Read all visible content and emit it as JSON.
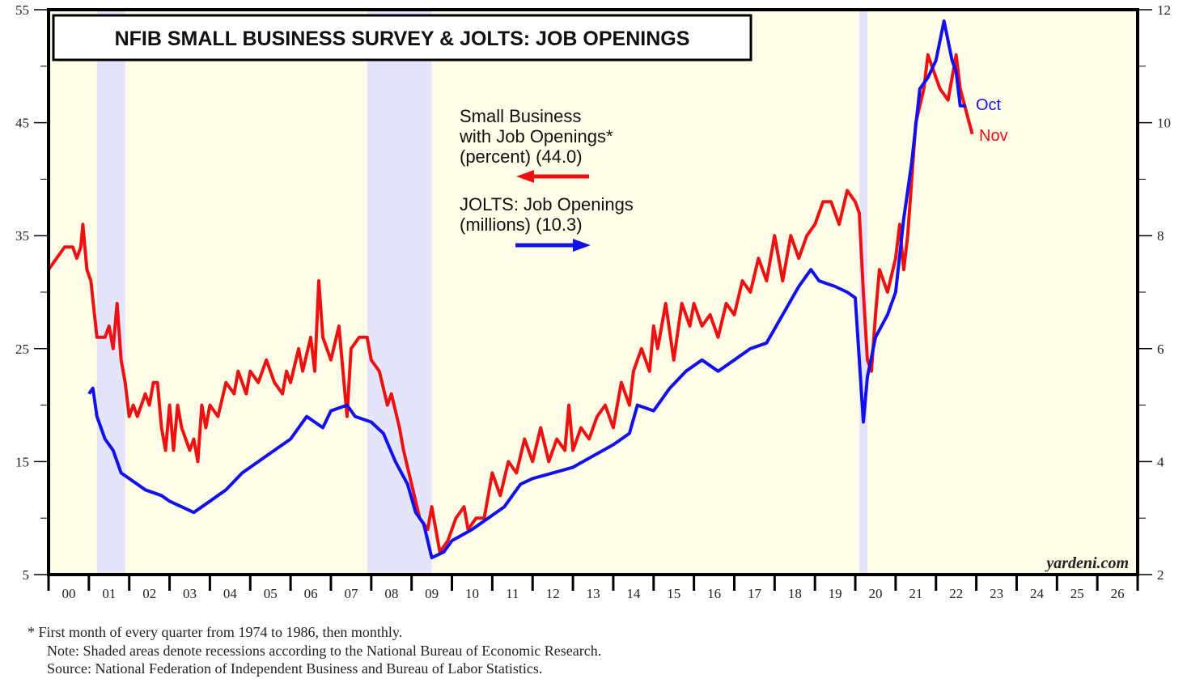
{
  "chart_data": {
    "type": "line",
    "title": "NFIB SMALL BUSINESS SURVEY & JOLTS: JOB OPENINGS",
    "xlim": [
      2000,
      2027
    ],
    "x_tick_labels": [
      "00",
      "01",
      "02",
      "03",
      "04",
      "05",
      "06",
      "07",
      "08",
      "09",
      "10",
      "11",
      "12",
      "13",
      "14",
      "15",
      "16",
      "17",
      "18",
      "19",
      "20",
      "21",
      "22",
      "23",
      "24",
      "25",
      "26"
    ],
    "y_left": {
      "lim": [
        5,
        55
      ],
      "ticks": [
        "5",
        "15",
        "25",
        "35",
        "45",
        "55"
      ],
      "label": "percent"
    },
    "y_right": {
      "lim": [
        2,
        12
      ],
      "ticks": [
        "2",
        "4",
        "6",
        "8",
        "10",
        "12"
      ],
      "label": "millions"
    },
    "grid": false,
    "recessions": [
      [
        2001.2,
        2001.9
      ],
      [
        2007.9,
        2009.5
      ],
      [
        2020.1,
        2020.3
      ]
    ],
    "colors": {
      "plot_bg": "#fffde8",
      "recession": "#e4e4fb",
      "red": "#ee1111",
      "blue": "#1111ee"
    },
    "series": [
      {
        "name": "Small Business with Job Openings* (percent) (44.0)",
        "axis": "left",
        "color": "#ee1111",
        "end_label": "Nov",
        "x": [
          2000.0,
          2000.2,
          2000.4,
          2000.6,
          2000.7,
          2000.8,
          2000.85,
          2000.95,
          2001.05,
          2001.2,
          2001.4,
          2001.5,
          2001.6,
          2001.7,
          2001.8,
          2001.9,
          2002.0,
          2002.1,
          2002.2,
          2002.4,
          2002.5,
          2002.6,
          2002.7,
          2002.8,
          2002.9,
          2003.0,
          2003.1,
          2003.2,
          2003.3,
          2003.5,
          2003.6,
          2003.7,
          2003.8,
          2003.9,
          2004.0,
          2004.2,
          2004.4,
          2004.6,
          2004.7,
          2004.9,
          2005.0,
          2005.2,
          2005.4,
          2005.6,
          2005.8,
          2005.9,
          2006.0,
          2006.2,
          2006.3,
          2006.5,
          2006.6,
          2006.7,
          2006.8,
          2007.0,
          2007.2,
          2007.4,
          2007.5,
          2007.7,
          2007.9,
          2008.0,
          2008.2,
          2008.4,
          2008.5,
          2008.7,
          2008.8,
          2009.0,
          2009.2,
          2009.4,
          2009.5,
          2009.7,
          2009.9,
          2010.1,
          2010.3,
          2010.4,
          2010.6,
          2010.8,
          2011.0,
          2011.2,
          2011.4,
          2011.6,
          2011.8,
          2012.0,
          2012.2,
          2012.4,
          2012.6,
          2012.8,
          2012.9,
          2013.0,
          2013.2,
          2013.4,
          2013.6,
          2013.8,
          2014.0,
          2014.2,
          2014.4,
          2014.5,
          2014.7,
          2014.9,
          2015.0,
          2015.1,
          2015.3,
          2015.5,
          2015.7,
          2015.9,
          2016.0,
          2016.2,
          2016.4,
          2016.6,
          2016.8,
          2017.0,
          2017.2,
          2017.4,
          2017.6,
          2017.8,
          2018.0,
          2018.2,
          2018.4,
          2018.6,
          2018.8,
          2019.0,
          2019.2,
          2019.4,
          2019.6,
          2019.8,
          2020.0,
          2020.1,
          2020.2,
          2020.3,
          2020.4,
          2020.5,
          2020.6,
          2020.8,
          2021.0,
          2021.1,
          2021.2,
          2021.3,
          2021.4,
          2021.5,
          2021.7,
          2021.8,
          2022.0,
          2022.1,
          2022.3,
          2022.5,
          2022.6,
          2022.75,
          2022.9
        ],
        "y": [
          32,
          33,
          34,
          34,
          33,
          34,
          36,
          32,
          31,
          26,
          26,
          27,
          25,
          29,
          24,
          22,
          19,
          20,
          19,
          21,
          20,
          22,
          22,
          18,
          16,
          20,
          16,
          20,
          18,
          16,
          17,
          15,
          20,
          18,
          20,
          19,
          22,
          21,
          23,
          21,
          23,
          22,
          24,
          22,
          21,
          23,
          22,
          25,
          23,
          26,
          23,
          31,
          26,
          24,
          27,
          19,
          25,
          26,
          26,
          24,
          23,
          20,
          21,
          18,
          16,
          13,
          10,
          9,
          11,
          7,
          8,
          10,
          11,
          9,
          10,
          10,
          14,
          12,
          15,
          14,
          17,
          15,
          18,
          15,
          17,
          16,
          20,
          16,
          18,
          17,
          19,
          20,
          18,
          22,
          20,
          23,
          25,
          23,
          27,
          25,
          29,
          24,
          29,
          27,
          29,
          27,
          28,
          26,
          29,
          28,
          31,
          30,
          33,
          31,
          35,
          31,
          35,
          33,
          35,
          36,
          38,
          38,
          36,
          39,
          38,
          37,
          30,
          24,
          23,
          28,
          32,
          30,
          33,
          36,
          32,
          35,
          40,
          45,
          48,
          51,
          49,
          48,
          47,
          51,
          48,
          46,
          44
        ]
      },
      {
        "name": "JOLTS: Job Openings (millions) (10.3)",
        "axis": "right",
        "color": "#1111ee",
        "end_label": "Oct",
        "x": [
          2001.0,
          2001.1,
          2001.2,
          2001.4,
          2001.6,
          2001.8,
          2002.0,
          2002.4,
          2002.8,
          2003.0,
          2003.3,
          2003.6,
          2004.0,
          2004.4,
          2004.8,
          2005.2,
          2005.6,
          2006.0,
          2006.4,
          2006.8,
          2007.0,
          2007.4,
          2007.6,
          2008.0,
          2008.3,
          2008.6,
          2008.9,
          2009.1,
          2009.3,
          2009.5,
          2009.8,
          2010.0,
          2010.5,
          2010.9,
          2011.3,
          2011.7,
          2012.0,
          2012.5,
          2013.0,
          2013.5,
          2014.0,
          2014.4,
          2014.6,
          2015.0,
          2015.4,
          2015.8,
          2016.2,
          2016.6,
          2017.0,
          2017.4,
          2017.8,
          2018.2,
          2018.6,
          2018.9,
          2019.1,
          2019.5,
          2019.8,
          2020.0,
          2020.2,
          2020.3,
          2020.5,
          2020.8,
          2021.0,
          2021.2,
          2021.4,
          2021.6,
          2021.8,
          2022.0,
          2022.2,
          2022.4,
          2022.5,
          2022.6,
          2022.75
        ],
        "y": [
          5.2,
          5.3,
          4.8,
          4.4,
          4.2,
          3.8,
          3.7,
          3.5,
          3.4,
          3.3,
          3.2,
          3.1,
          3.3,
          3.5,
          3.8,
          4.0,
          4.2,
          4.4,
          4.8,
          4.6,
          4.9,
          5.0,
          4.8,
          4.7,
          4.5,
          4.0,
          3.6,
          3.1,
          2.9,
          2.3,
          2.4,
          2.6,
          2.8,
          3.0,
          3.2,
          3.6,
          3.7,
          3.8,
          3.9,
          4.1,
          4.3,
          4.5,
          5.0,
          4.9,
          5.3,
          5.6,
          5.8,
          5.6,
          5.8,
          6.0,
          6.1,
          6.6,
          7.1,
          7.4,
          7.2,
          7.1,
          7.0,
          6.9,
          4.7,
          5.5,
          6.2,
          6.6,
          7.0,
          8.3,
          9.3,
          10.6,
          10.8,
          11.1,
          11.8,
          11.1,
          10.9,
          10.3,
          10.3
        ]
      }
    ],
    "annotations": {
      "red_label": [
        "Small Business",
        "with Job Openings*",
        "(percent) (44.0)"
      ],
      "blue_label": [
        "JOLTS: Job Openings",
        "(millions) (10.3)"
      ],
      "source_mark": "yardeni.com"
    },
    "notes": [
      "*  First month of every quarter from 1974 to 1986, then monthly.",
      "Note: Shaded areas denote recessions according to the National Bureau of Economic Research.",
      "Source: National Federation of Independent Business and Bureau of Labor Statistics."
    ]
  }
}
